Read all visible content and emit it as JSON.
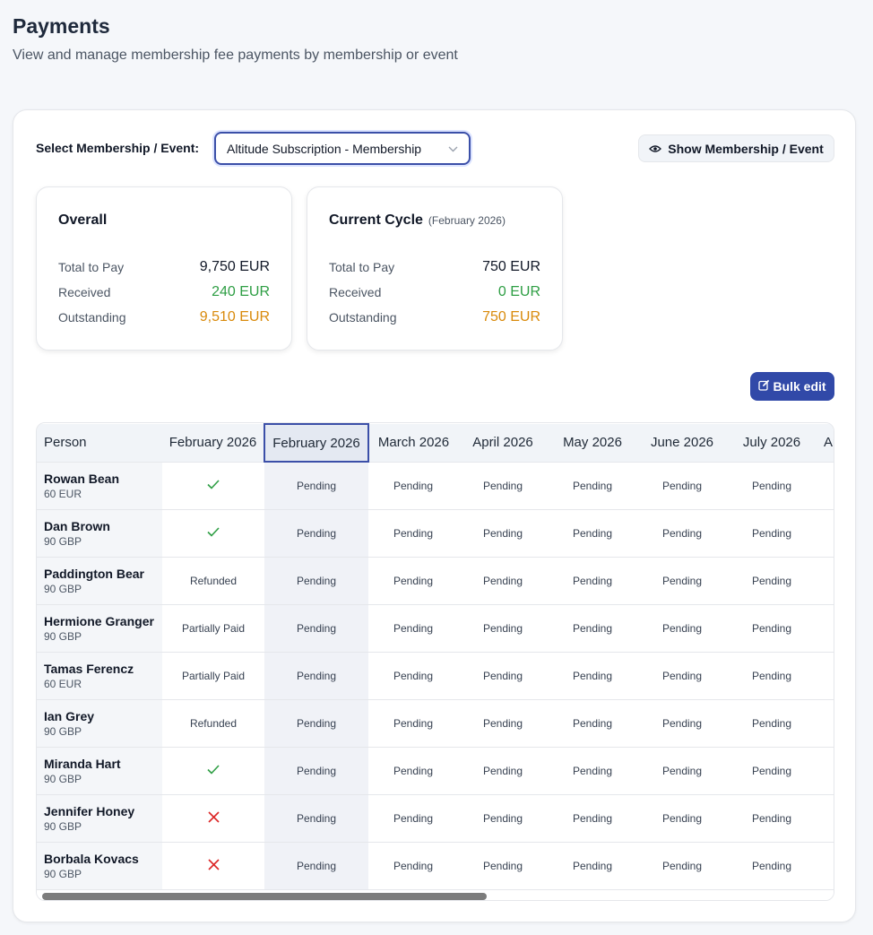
{
  "header": {
    "title": "Payments",
    "subtitle": "View and manage membership fee payments by membership or event"
  },
  "controls": {
    "select_label": "Select Membership / Event:",
    "select_value": "Altitude Subscription - Membership",
    "show_button": "Show Membership / Event",
    "bulk_edit": "Bulk edit"
  },
  "overall": {
    "title": "Overall",
    "total_label": "Total to Pay",
    "total_value": "9,750 EUR",
    "received_label": "Received",
    "received_value": "240 EUR",
    "outstanding_label": "Outstanding",
    "outstanding_value": "9,510 EUR"
  },
  "cycle": {
    "title": "Current Cycle",
    "note": "(February 2026)",
    "total_label": "Total to Pay",
    "total_value": "750 EUR",
    "received_label": "Received",
    "received_value": "0 EUR",
    "outstanding_label": "Outstanding",
    "outstanding_value": "750 EUR"
  },
  "table": {
    "columns": [
      "Person",
      "February 2026",
      "February 2026",
      "March 2026",
      "April 2026",
      "May 2026",
      "June 2026",
      "July 2026",
      "Au"
    ],
    "rows": [
      {
        "name": "Rowan Bean",
        "fee": "60 EUR",
        "status": "check"
      },
      {
        "name": "Dan Brown",
        "fee": "90 GBP",
        "status": "check"
      },
      {
        "name": "Paddington Bear",
        "fee": "90 GBP",
        "status": "Refunded"
      },
      {
        "name": "Hermione Granger",
        "fee": "90 GBP",
        "status": "Partially Paid"
      },
      {
        "name": "Tamas Ferencz",
        "fee": "60 EUR",
        "status": "Partially Paid"
      },
      {
        "name": "Ian Grey",
        "fee": "90 GBP",
        "status": "Refunded"
      },
      {
        "name": "Miranda Hart",
        "fee": "90 GBP",
        "status": "check"
      },
      {
        "name": "Jennifer Honey",
        "fee": "90 GBP",
        "status": "cross"
      },
      {
        "name": "Borbala Kovacs",
        "fee": "90 GBP",
        "status": "cross"
      }
    ],
    "pending_text": "Pending",
    "pending_columns": 6
  },
  "colors": {
    "accent": "#3149a8",
    "positive": "#2e9e44",
    "warning": "#d98a0b",
    "negative": "#dc2626"
  },
  "icons": {
    "check": "check-icon",
    "cross": "x-icon",
    "eye": "eye-icon",
    "edit": "edit-icon",
    "chevron": "chevron-down-icon"
  }
}
